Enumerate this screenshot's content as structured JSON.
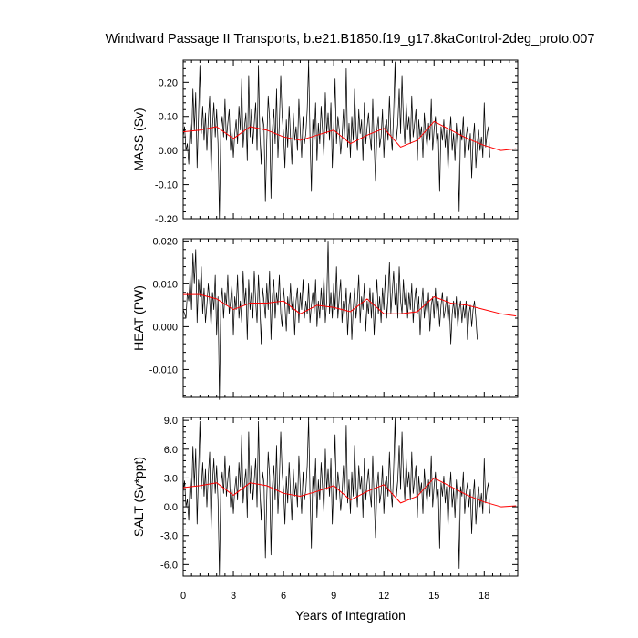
{
  "title": "Windward Passage II Transports, b.e21.B1850.f19_g17.8kaControl-2deg_proto.007",
  "colors": {
    "raw": "#000000",
    "smooth": "#ff0000",
    "frame": "#000000"
  },
  "chart_data": [
    {
      "type": "line",
      "ylabel": "MASS (Sv)",
      "ylim": [
        -0.2,
        0.265
      ],
      "yticks": [
        -0.2,
        -0.1,
        0.0,
        0.1,
        0.2
      ],
      "ytick_labels": [
        "-0.20",
        "-0.10",
        "0.00",
        "0.10",
        "0.20"
      ],
      "series": [
        {
          "key": "raw",
          "x0": 0,
          "dx": 0.0833333,
          "values": [
            0.04,
            0.07,
            0.0,
            0.02,
            -0.04,
            0.08,
            0.02,
            0.18,
            0.06,
            0.17,
            -0.05,
            0.1,
            0.25,
            0.05,
            0.13,
            0.03,
            0.11,
            0.0,
            0.09,
            0.16,
            -0.07,
            0.07,
            0.14,
            0.04,
            0.12,
            0.02,
            -0.2,
            0.06,
            0.1,
            0.04,
            0.15,
            0.03,
            0.08,
            0.12,
            0.0,
            0.06,
            -0.02,
            0.05,
            0.09,
            0.02,
            0.13,
            0.06,
            0.21,
            0.01,
            0.07,
            0.11,
            -0.03,
            0.22,
            0.04,
            0.12,
            0.02,
            0.08,
            0.14,
            0.0,
            0.25,
            0.05,
            -0.04,
            0.1,
            0.07,
            -0.15,
            0.03,
            0.16,
            0.09,
            -0.14,
            0.06,
            0.12,
            0.02,
            0.18,
            -0.02,
            0.08,
            0.22,
            0.1,
            0.05,
            -0.05,
            0.09,
            0.01,
            0.13,
            0.04,
            -0.04,
            0.11,
            0.03,
            0.07,
            0.0,
            0.15,
            0.06,
            -0.02,
            0.1,
            0.02,
            0.05,
            0.12,
            0.26,
            0.04,
            -0.12,
            0.09,
            0.03,
            0.14,
            -0.03,
            0.08,
            0.02,
            0.13,
            0.06,
            -0.02,
            0.17,
            0.05,
            0.11,
            0.03,
            0.14,
            -0.05,
            0.07,
            0.21,
            0.02,
            0.1,
            0.06,
            -0.01,
            0.04,
            0.12,
            0.03,
            0.24,
            0.01,
            0.08,
            -0.02,
            0.1,
            0.03,
            0.18,
            0.06,
            0.0,
            0.12,
            0.05,
            0.09,
            -0.03,
            0.14,
            0.02,
            0.07,
            0.11,
            0.04,
            0.0,
            0.15,
            0.02,
            -0.09,
            0.06,
            0.1,
            0.01,
            0.04,
            0.12,
            -0.02,
            0.07,
            0.09,
            0.03,
            0.16,
            0.05,
            0.0,
            0.11,
            0.26,
            0.03,
            0.08,
            0.18,
            0.05,
            0.22,
            0.09,
            0.02,
            0.14,
            0.06,
            0.1,
            0.02,
            0.16,
            0.04,
            0.08,
            0.12,
            -0.03,
            0.09,
            0.04,
            0.07,
            -0.02,
            0.11,
            0.05,
            0.01,
            0.08,
            0.03,
            0.15,
            0.0,
            0.06,
            0.1,
            0.02,
            0.05,
            -0.12,
            0.07,
            0.03,
            0.09,
            0.01,
            0.06,
            -0.06,
            0.04,
            0.1,
            0.0,
            0.05,
            -0.03,
            0.08,
            0.02,
            -0.18,
            0.06,
            0.03,
            0.1,
            -0.02,
            0.04,
            0.07,
            0.0,
            0.05,
            -0.08,
            0.03,
            0.08,
            -0.05,
            0.02,
            0.06,
            0.0,
            0.04,
            -0.02,
            0.14,
            0.01,
            0.05,
            0.07,
            -0.02
          ]
        },
        {
          "key": "smooth",
          "x": [
            0,
            1,
            2,
            3,
            4,
            5,
            6,
            7,
            8,
            9,
            10,
            11,
            12,
            13,
            14,
            15,
            16,
            17,
            18,
            19,
            19.9
          ],
          "values": [
            0.055,
            0.06,
            0.07,
            0.035,
            0.07,
            0.06,
            0.04,
            0.03,
            0.045,
            0.06,
            0.02,
            0.045,
            0.065,
            0.01,
            0.03,
            0.085,
            0.06,
            0.035,
            0.015,
            0.0,
            0.005
          ]
        }
      ]
    },
    {
      "type": "line",
      "ylabel": "HEAT (PW)",
      "ylim": [
        -0.0165,
        0.0205
      ],
      "yticks": [
        -0.01,
        0.0,
        0.01,
        0.02
      ],
      "ytick_labels": [
        "-0.010",
        "0.000",
        "0.010",
        "0.020"
      ],
      "series": [
        {
          "key": "raw",
          "x0": 0,
          "dx": 0.0833333,
          "values": [
            0.004,
            0.003,
            0.002,
            0.008,
            0.006,
            0.012,
            0.004,
            0.017,
            0.01,
            0.018,
            0.001,
            0.011,
            0.007,
            0.014,
            0.003,
            0.009,
            0.001,
            0.005,
            0.01,
            0.006,
            0.0,
            0.008,
            0.004,
            0.012,
            -0.002,
            0.007,
            -0.017,
            0.005,
            0.009,
            0.002,
            0.008,
            0.005,
            0.012,
            0.003,
            0.006,
            0.01,
            -0.002,
            0.007,
            0.004,
            0.012,
            0.002,
            0.006,
            0.001,
            0.013,
            0.005,
            0.009,
            -0.003,
            0.011,
            0.004,
            0.008,
            0.002,
            0.013,
            0.006,
            0.001,
            0.012,
            0.005,
            -0.004,
            0.009,
            0.006,
            0.002,
            0.01,
            0.004,
            0.013,
            -0.003,
            0.007,
            0.011,
            0.002,
            0.008,
            0.005,
            0.012,
            0.003,
            0.0,
            0.009,
            0.005,
            -0.001,
            0.007,
            0.003,
            0.01,
            0.004,
            0.007,
            -0.002,
            0.006,
            0.009,
            0.001,
            0.008,
            0.004,
            0.011,
            0.002,
            0.006,
            0.003,
            0.01,
            0.001,
            0.005,
            0.008,
            0.003,
            0.011,
            0.0,
            0.006,
            0.002,
            0.009,
            0.004,
            0.012,
            0.001,
            0.006,
            0.02,
            0.003,
            0.008,
            0.002,
            0.01,
            0.004,
            0.014,
            0.002,
            0.007,
            0.011,
            0.001,
            0.006,
            0.003,
            0.009,
            -0.002,
            0.005,
            0.008,
            -0.003,
            0.004,
            0.009,
            0.002,
            0.006,
            0.012,
            0.001,
            0.007,
            0.004,
            0.01,
            -0.001,
            0.006,
            0.003,
            0.009,
            0.002,
            0.008,
            -0.002,
            0.005,
            0.011,
            0.003,
            0.007,
            0.001,
            0.009,
            0.004,
            0.012,
            0.002,
            0.007,
            0.015,
            0.003,
            0.008,
            0.013,
            0.005,
            0.01,
            0.002,
            0.014,
            0.006,
            0.003,
            0.011,
            0.005,
            0.009,
            0.002,
            0.008,
            0.004,
            0.01,
            0.001,
            0.006,
            0.009,
            0.003,
            0.007,
            -0.002,
            0.005,
            0.009,
            0.002,
            0.006,
            0.003,
            0.008,
            -0.001,
            0.005,
            0.007,
            0.002,
            0.009,
            0.003,
            0.006,
            0.0,
            0.005,
            0.008,
            0.002,
            0.004,
            0.007,
            0.001,
            0.005,
            -0.004,
            0.003,
            0.006,
            0.002,
            0.007,
            0.0,
            0.004,
            0.006,
            0.001,
            0.005,
            0.002,
            0.006,
            -0.003,
            0.003,
            0.005,
            0.0,
            0.004,
            0.006,
            0.002,
            -0.003
          ]
        },
        {
          "key": "smooth",
          "x": [
            0,
            1,
            2,
            3,
            4,
            5,
            6,
            7,
            8,
            9,
            10,
            11,
            12,
            13,
            14,
            15,
            16,
            17,
            18,
            19,
            19.9
          ],
          "values": [
            0.0075,
            0.0075,
            0.0065,
            0.004,
            0.0055,
            0.0055,
            0.006,
            0.003,
            0.005,
            0.0045,
            0.0035,
            0.0065,
            0.003,
            0.003,
            0.0035,
            0.007,
            0.0055,
            0.005,
            0.004,
            0.003,
            0.0025
          ]
        }
      ]
    },
    {
      "type": "line",
      "ylabel": "SALT (Sv*ppt)",
      "xlabel": "Years of Integration",
      "xlim": [
        0,
        20
      ],
      "xticks": [
        0,
        3,
        6,
        9,
        12,
        15,
        18
      ],
      "ylim": [
        -7.2,
        9.3
      ],
      "yticks": [
        -6,
        -3,
        0,
        3,
        6,
        9
      ],
      "ytick_labels": [
        "-6.0",
        "-3.0",
        "0.0",
        "3.0",
        "6.0",
        "9.0"
      ],
      "series": [
        {
          "key": "raw",
          "x0": 0,
          "dx": 0.0833333,
          "values": [
            1.5,
            2.7,
            0.0,
            0.8,
            -1.4,
            3.0,
            0.8,
            6.3,
            2.2,
            6.0,
            -1.8,
            3.6,
            8.9,
            1.8,
            4.6,
            1.1,
            3.9,
            0.0,
            3.2,
            5.7,
            -2.5,
            2.5,
            5.0,
            1.4,
            4.3,
            0.7,
            -7.1,
            2.1,
            3.6,
            1.4,
            5.3,
            1.1,
            2.8,
            4.3,
            0.0,
            2.1,
            -0.7,
            1.8,
            3.2,
            0.7,
            4.6,
            2.1,
            7.5,
            0.4,
            2.5,
            3.9,
            -1.1,
            7.8,
            1.4,
            4.3,
            0.7,
            2.8,
            5.0,
            0.0,
            8.9,
            1.8,
            -1.4,
            3.6,
            2.5,
            -5.3,
            1.1,
            5.7,
            3.2,
            -5.0,
            2.1,
            4.3,
            0.7,
            6.4,
            -0.7,
            2.8,
            7.8,
            3.6,
            1.8,
            -1.8,
            3.2,
            0.4,
            4.6,
            1.4,
            -1.4,
            3.9,
            1.1,
            2.5,
            0.0,
            5.3,
            2.1,
            -0.7,
            3.6,
            0.7,
            1.8,
            4.3,
            9.2,
            1.4,
            -4.3,
            3.2,
            1.1,
            5.0,
            -1.1,
            2.8,
            0.7,
            4.6,
            2.1,
            -0.7,
            6.0,
            1.8,
            3.9,
            1.1,
            5.0,
            -1.8,
            2.5,
            7.5,
            0.7,
            3.6,
            2.1,
            -0.4,
            1.4,
            4.3,
            1.1,
            8.5,
            0.4,
            2.8,
            -0.7,
            3.6,
            1.1,
            6.4,
            2.1,
            0.0,
            4.3,
            1.8,
            3.2,
            -1.1,
            5.0,
            0.7,
            2.5,
            3.9,
            1.4,
            0.0,
            5.3,
            0.7,
            -3.2,
            2.1,
            3.6,
            0.4,
            1.4,
            4.3,
            -0.7,
            2.5,
            3.2,
            1.1,
            5.7,
            1.8,
            0.0,
            3.9,
            9.2,
            1.1,
            2.8,
            6.4,
            1.8,
            7.8,
            3.2,
            0.7,
            5.0,
            2.1,
            3.6,
            0.7,
            5.7,
            1.4,
            2.8,
            4.3,
            -1.1,
            3.2,
            1.4,
            2.5,
            -0.7,
            3.9,
            1.8,
            0.4,
            2.8,
            1.1,
            5.3,
            0.0,
            2.1,
            3.6,
            0.7,
            1.8,
            -4.3,
            2.5,
            1.1,
            3.2,
            0.4,
            2.1,
            -2.1,
            1.4,
            3.6,
            0.0,
            1.8,
            -1.1,
            2.8,
            0.7,
            -6.4,
            2.1,
            1.1,
            3.6,
            -0.7,
            1.4,
            2.5,
            0.0,
            1.8,
            -2.8,
            1.1,
            2.8,
            -1.8,
            0.7,
            2.1,
            0.0,
            1.4,
            -0.7,
            5.0,
            0.4,
            1.8,
            2.5,
            -0.7
          ]
        },
        {
          "key": "smooth",
          "x": [
            0,
            1,
            2,
            3,
            4,
            5,
            6,
            7,
            8,
            9,
            10,
            11,
            12,
            13,
            14,
            15,
            16,
            17,
            18,
            19,
            19.9
          ],
          "values": [
            2.0,
            2.2,
            2.5,
            1.2,
            2.5,
            2.2,
            1.4,
            1.1,
            1.6,
            2.2,
            0.7,
            1.6,
            2.3,
            0.4,
            1.1,
            3.0,
            2.1,
            1.2,
            0.5,
            0.0,
            0.1
          ]
        }
      ]
    }
  ]
}
